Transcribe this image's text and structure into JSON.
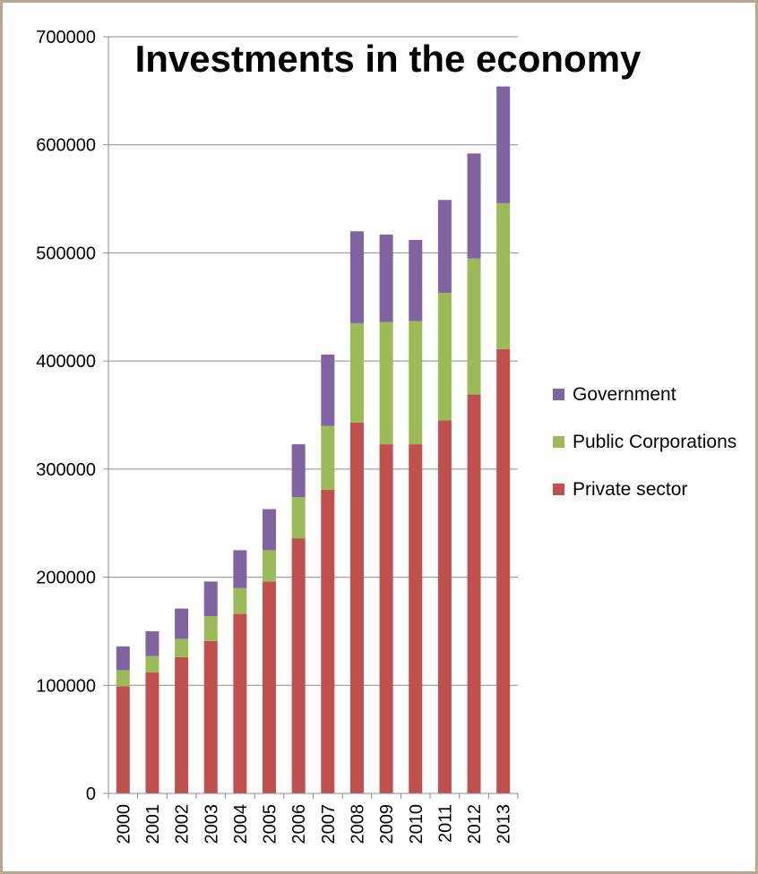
{
  "chart_data": {
    "type": "bar",
    "stacked": true,
    "title": "Investments in the economy",
    "xlabel": "",
    "ylabel": "",
    "ylim": [
      0,
      700000
    ],
    "yticks": [
      "0",
      "100000",
      "200000",
      "300000",
      "400000",
      "500000",
      "600000",
      "700000"
    ],
    "grid": true,
    "legend_position": "right",
    "categories": [
      "2000",
      "2001",
      "2002",
      "2003",
      "2004",
      "2005",
      "2006",
      "2007",
      "2008",
      "2009",
      "2010",
      "2011",
      "2012",
      "2013"
    ],
    "series": [
      {
        "name": "Private sector",
        "color": "#c0504d",
        "values": [
          99000,
          112000,
          126000,
          141000,
          166000,
          196000,
          236000,
          281000,
          343000,
          323000,
          323000,
          345000,
          369000,
          411000
        ]
      },
      {
        "name": "Public Corporations",
        "color": "#9bbb59",
        "values": [
          15000,
          15000,
          17000,
          23000,
          24000,
          29000,
          38000,
          59000,
          92000,
          113000,
          114000,
          118000,
          126000,
          135000
        ]
      },
      {
        "name": "Government",
        "color": "#8064a2",
        "values": [
          22000,
          23000,
          28000,
          32000,
          35000,
          38000,
          49000,
          66000,
          85000,
          81000,
          75000,
          86000,
          97000,
          108000
        ]
      }
    ]
  }
}
